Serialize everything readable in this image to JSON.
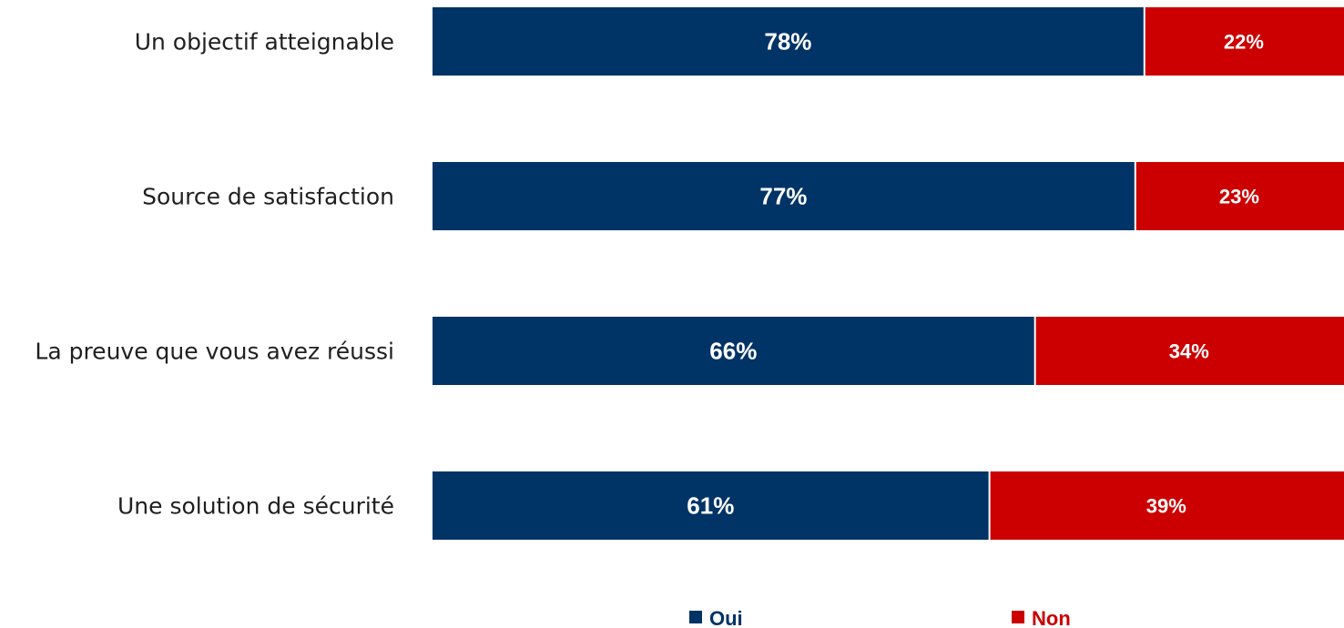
{
  "chart_data": {
    "type": "bar",
    "orientation": "horizontal",
    "stacked": true,
    "categories": [
      "Un objectif atteignable",
      "Source de satisfaction",
      "La preuve que vous avez réussi",
      "Une solution de sécurité"
    ],
    "series": [
      {
        "name": "Oui",
        "values": [
          78,
          77,
          66,
          61
        ],
        "labels": [
          "78%",
          "77%",
          "66%",
          "61%"
        ],
        "color": "#003366"
      },
      {
        "name": "Non",
        "values": [
          22,
          23,
          34,
          39
        ],
        "labels": [
          "22%",
          "23%",
          "34%",
          "39%"
        ],
        "color": "#cc0000"
      }
    ],
    "xlim": [
      0,
      100
    ],
    "grid": false,
    "legend": "bottom"
  }
}
